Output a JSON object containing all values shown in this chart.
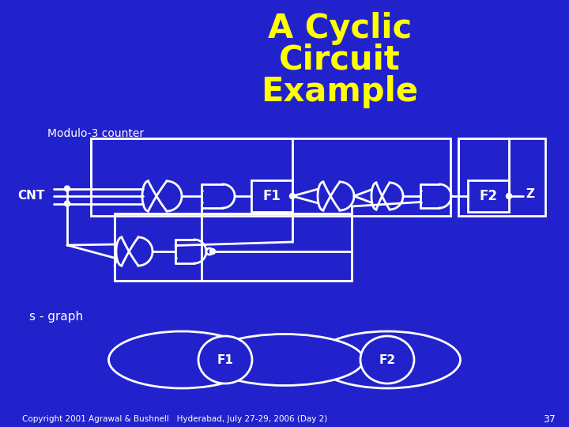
{
  "bg_color": "#2222CC",
  "title_line1": "A Cyclic",
  "title_line2": "Circuit",
  "title_line3": "Example",
  "title_color": "#FFFF00",
  "title_fontsize": 30,
  "white_color": "#FFFFFF",
  "subtitle": "Modulo-3 counter",
  "subtitle_fontsize": 11,
  "sgraph_label": "s - graph",
  "copyright": "Copyright 2001 Agrawal & Bushnell   Hyderabad, July 27-29, 2006 (Day 2)",
  "page_num": "37",
  "cnt_label": "CNT",
  "z_label": "Z",
  "f1_label": "F1",
  "f2_label": "F2"
}
